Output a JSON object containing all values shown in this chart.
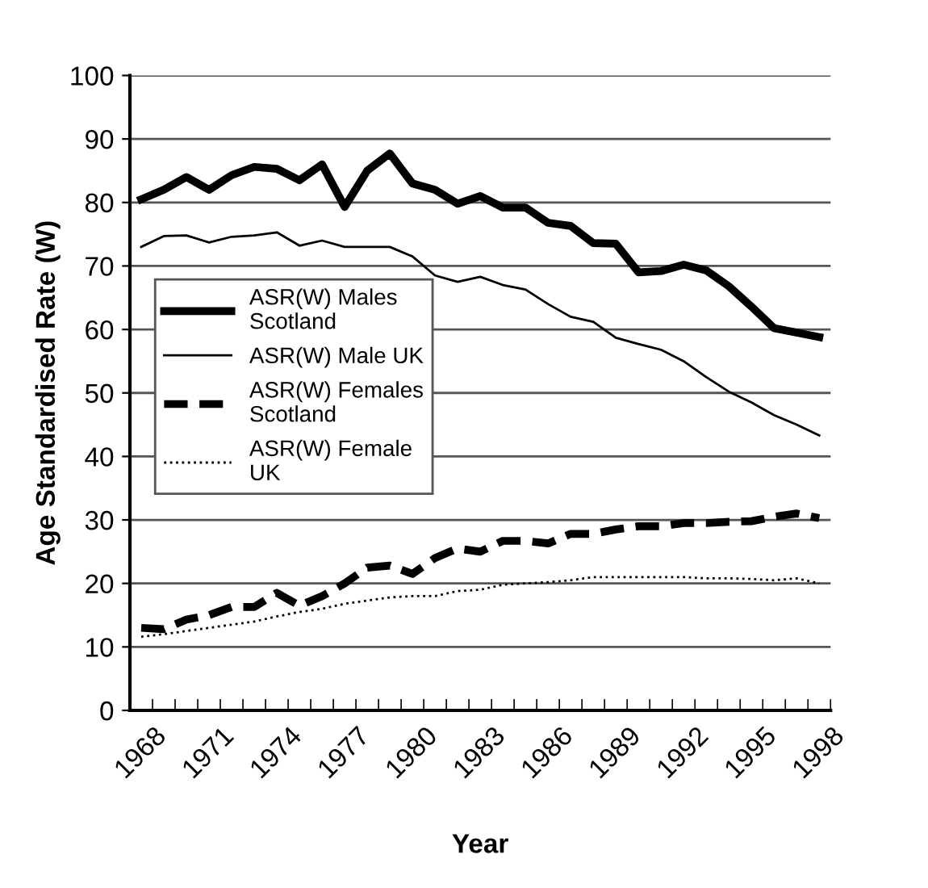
{
  "chart_data": {
    "type": "line",
    "xlabel": "Year",
    "ylabel": "Age Standardised Rate (W)",
    "categories": [
      "1968",
      null,
      null,
      "1971",
      null,
      null,
      "1974",
      null,
      null,
      "1977",
      null,
      null,
      "1980",
      null,
      null,
      "1983",
      null,
      null,
      "1986",
      null,
      null,
      "1989",
      null,
      null,
      "1992",
      null,
      null,
      "1995",
      null,
      null,
      "1998"
    ],
    "series": [
      {
        "name": "ASR(W) Males\nScotland",
        "color": "#000000",
        "line_style": "solid",
        "values": [
          80.5,
          82,
          84,
          82,
          84.3,
          85.6,
          85.3,
          83.5,
          86,
          79.3,
          85,
          87.7,
          83,
          82,
          79.8,
          81,
          79.2,
          79.2,
          76.8,
          76.3,
          73.6,
          73.5,
          69,
          69.2,
          70.2,
          69.3,
          66.8,
          63.6,
          60.2,
          59.5,
          58.8
        ]
      },
      {
        "name": "ASR(W) Male UK",
        "color": "#000000",
        "line_style": "solid",
        "values": [
          73,
          74.7,
          74.8,
          73.7,
          74.6,
          74.8,
          75.3,
          73.2,
          74,
          73,
          73,
          73,
          71.5,
          68.5,
          67.5,
          68.3,
          67,
          66.3,
          64,
          62,
          61.2,
          58.7,
          57.7,
          56.8,
          55,
          52.5,
          50.2,
          48.5,
          46.5,
          45,
          43.3
        ]
      },
      {
        "name": "ASR(W) Females\nScotland",
        "color": "#000000",
        "line_style": "dashed",
        "values": [
          13,
          12.8,
          14.3,
          15,
          16.3,
          16.3,
          18.5,
          16.5,
          18,
          20,
          22.5,
          22.8,
          21.5,
          24,
          25.5,
          25,
          26.7,
          26.7,
          26.3,
          27.8,
          27.8,
          28.5,
          29,
          29,
          29.5,
          29.5,
          29.7,
          29.8,
          30.5,
          31,
          30.3
        ]
      },
      {
        "name": "ASR(W) Female\nUK",
        "color": "#000000",
        "line_style": "dotted",
        "values": [
          11.6,
          12,
          12.5,
          13,
          13.5,
          14,
          14.8,
          15.5,
          16,
          16.8,
          17.3,
          17.8,
          18,
          18,
          18.8,
          19,
          19.8,
          20,
          20.2,
          20.5,
          21,
          21,
          21,
          21,
          21,
          20.8,
          20.8,
          20.7,
          20.5,
          20.8,
          20
        ]
      }
    ],
    "ylim": [
      0,
      100
    ],
    "yticks": [
      0,
      10,
      20,
      30,
      40,
      50,
      60,
      70,
      80,
      90,
      100
    ],
    "grid": "y",
    "legend": "center left",
    "marker": "none"
  }
}
